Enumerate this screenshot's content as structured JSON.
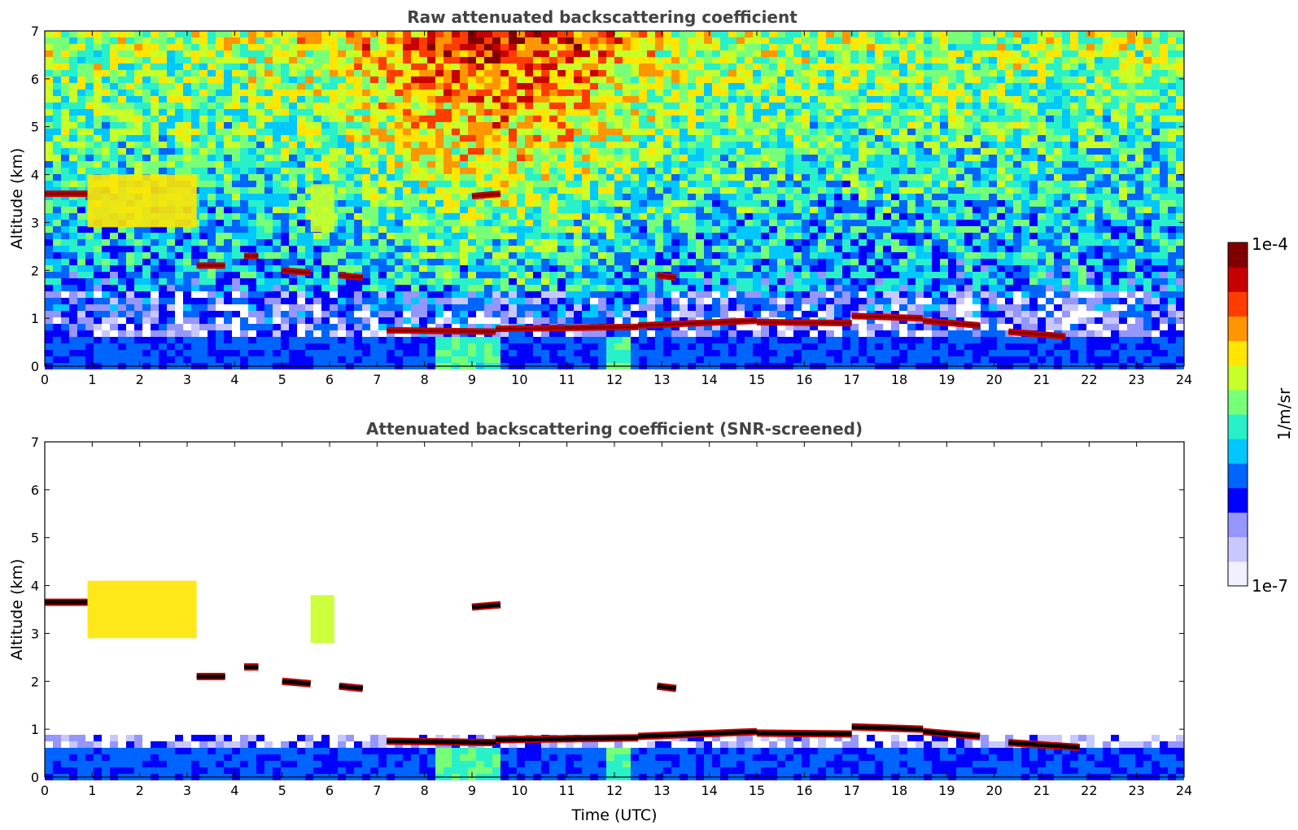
{
  "chart_data": [
    {
      "type": "heatmap",
      "title": "Raw attenuated backscattering coefficient",
      "xlabel": "",
      "ylabel": "Altitude (km)",
      "xlim": [
        0,
        24
      ],
      "ylim": [
        0,
        7
      ],
      "xticks": [
        0,
        1,
        2,
        3,
        4,
        5,
        6,
        7,
        8,
        9,
        10,
        11,
        12,
        13,
        14,
        15,
        16,
        17,
        18,
        19,
        20,
        21,
        22,
        23,
        24
      ],
      "yticks": [
        0,
        1,
        2,
        3,
        4,
        5,
        6,
        7
      ],
      "noise": "full",
      "cloud_layers": [
        {
          "x": [
            0,
            0.9
          ],
          "y": [
            3.6,
            3.6
          ]
        },
        {
          "x": [
            3.2,
            3.8
          ],
          "y": [
            2.1,
            2.1
          ]
        },
        {
          "x": [
            4.2,
            4.5
          ],
          "y": [
            2.3,
            2.3
          ]
        },
        {
          "x": [
            5.0,
            5.6
          ],
          "y": [
            2.0,
            1.95
          ]
        },
        {
          "x": [
            6.2,
            6.7
          ],
          "y": [
            1.9,
            1.85
          ]
        },
        {
          "x": [
            9.0,
            9.6
          ],
          "y": [
            3.55,
            3.6
          ]
        },
        {
          "x": [
            12.9,
            13.3
          ],
          "y": [
            1.9,
            1.85
          ]
        },
        {
          "x": [
            7.2,
            9.5
          ],
          "y": [
            0.75,
            0.72
          ]
        },
        {
          "x": [
            9.5,
            12.5
          ],
          "y": [
            0.78,
            0.82
          ]
        },
        {
          "x": [
            12.5,
            15.0
          ],
          "y": [
            0.85,
            0.95
          ]
        },
        {
          "x": [
            15.0,
            17.0
          ],
          "y": [
            0.92,
            0.9
          ]
        },
        {
          "x": [
            17.0,
            18.5
          ],
          "y": [
            1.05,
            1.0
          ]
        },
        {
          "x": [
            18.5,
            19.7
          ],
          "y": [
            0.95,
            0.85
          ]
        },
        {
          "x": [
            20.3,
            21.5
          ],
          "y": [
            0.72,
            0.62
          ]
        }
      ],
      "aerosol_regions": [
        {
          "x": [
            0.9,
            3.2
          ],
          "y": [
            2.9,
            4.0
          ],
          "level": 0.72
        },
        {
          "x": [
            5.6,
            6.1
          ],
          "y": [
            2.8,
            3.8
          ],
          "level": 0.62
        }
      ]
    },
    {
      "type": "heatmap",
      "title": "Attenuated backscattering coefficient (SNR-screened)",
      "xlabel": "Time (UTC)",
      "ylabel": "Altitude (km)",
      "xlim": [
        0,
        24
      ],
      "ylim": [
        0,
        7
      ],
      "xticks": [
        0,
        1,
        2,
        3,
        4,
        5,
        6,
        7,
        8,
        9,
        10,
        11,
        12,
        13,
        14,
        15,
        16,
        17,
        18,
        19,
        20,
        21,
        22,
        23,
        24
      ],
      "yticks": [
        0,
        1,
        2,
        3,
        4,
        5,
        6,
        7
      ],
      "noise": "screened",
      "cloud_layers": [
        {
          "x": [
            0,
            0.9
          ],
          "y": [
            3.65,
            3.65
          ]
        },
        {
          "x": [
            3.2,
            3.8
          ],
          "y": [
            2.1,
            2.1
          ]
        },
        {
          "x": [
            4.2,
            4.5
          ],
          "y": [
            2.3,
            2.3
          ]
        },
        {
          "x": [
            5.0,
            5.6
          ],
          "y": [
            2.0,
            1.95
          ]
        },
        {
          "x": [
            6.2,
            6.7
          ],
          "y": [
            1.9,
            1.85
          ]
        },
        {
          "x": [
            9.0,
            9.6
          ],
          "y": [
            3.55,
            3.6
          ]
        },
        {
          "x": [
            12.9,
            13.3
          ],
          "y": [
            1.9,
            1.85
          ]
        },
        {
          "x": [
            7.2,
            9.5
          ],
          "y": [
            0.75,
            0.72
          ]
        },
        {
          "x": [
            9.5,
            12.5
          ],
          "y": [
            0.78,
            0.82
          ]
        },
        {
          "x": [
            12.5,
            15.0
          ],
          "y": [
            0.85,
            0.95
          ]
        },
        {
          "x": [
            15.0,
            17.0
          ],
          "y": [
            0.92,
            0.9
          ]
        },
        {
          "x": [
            17.0,
            18.5
          ],
          "y": [
            1.05,
            1.0
          ]
        },
        {
          "x": [
            18.5,
            19.7
          ],
          "y": [
            0.95,
            0.85
          ]
        },
        {
          "x": [
            20.3,
            21.8
          ],
          "y": [
            0.72,
            0.62
          ]
        }
      ],
      "aerosol_regions": [
        {
          "x": [
            0.9,
            3.2
          ],
          "y": [
            2.9,
            4.1
          ],
          "level": 0.72
        },
        {
          "x": [
            5.6,
            6.1
          ],
          "y": [
            2.8,
            3.8
          ],
          "level": 0.62
        }
      ]
    }
  ],
  "colorbar": {
    "label": "1/m/sr",
    "max_label": "1e-4",
    "min_label": "1e-7",
    "colors": [
      "#f0f0ff",
      "#c8c8ff",
      "#9696ff",
      "#0000ff",
      "#0064ff",
      "#00c8ff",
      "#28f0c8",
      "#78ff78",
      "#c8ff28",
      "#ffe600",
      "#ff9600",
      "#ff3c00",
      "#c80000",
      "#800000"
    ]
  }
}
